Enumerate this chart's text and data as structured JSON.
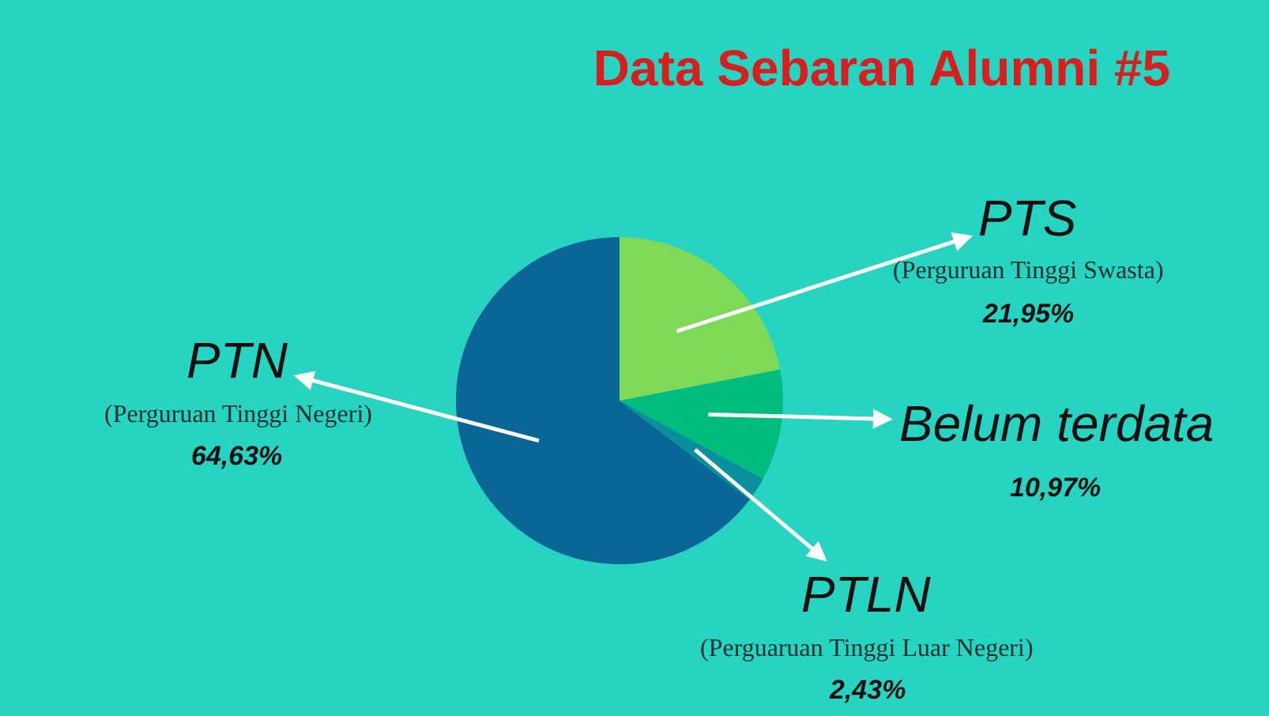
{
  "chart_data": {
    "type": "pie",
    "title": "Data Sebaran Alumni #5",
    "categories": [
      "PTS\n(Perguruan Tinggi Swasta)",
      "Belum terdata",
      "PTLN\n(Perguaruan Tinggi Luar Negeri)",
      "PTN\n(Perguruan Tinggi Negeri)"
    ],
    "values": [
      21.95,
      10.97,
      2.43,
      64.63
    ],
    "colors": [
      "#7ed957",
      "#00bd7e",
      "#0a8f9c",
      "#0a6696"
    ],
    "value_labels": [
      "21,95%",
      "10,97%",
      "2,43%",
      "64,63%"
    ]
  }
}
